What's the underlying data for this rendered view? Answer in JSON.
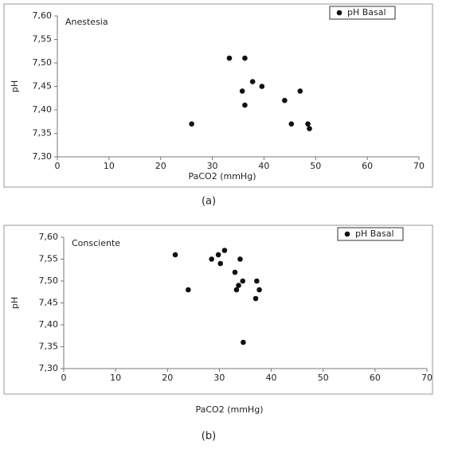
{
  "chart_data": [
    {
      "type": "scatter",
      "annotation": "Anestesia",
      "caption": "(a)",
      "x_label": "PaCO2 (mmHg)",
      "y_label": "pH",
      "series": [
        {
          "name": "pH Basal",
          "color": "#111111",
          "x": [
            26,
            33.3,
            36.3,
            35.8,
            37.8,
            39.6,
            36.3,
            44,
            47,
            45.3,
            48.5,
            48.8
          ],
          "values": [
            7.37,
            7.51,
            7.51,
            7.44,
            7.46,
            7.45,
            7.41,
            7.42,
            7.44,
            7.37,
            7.37,
            7.36
          ]
        }
      ],
      "xlim": [
        0,
        70
      ],
      "xticks": [
        0,
        10,
        20,
        30,
        40,
        50,
        60,
        70
      ],
      "ylim": [
        7.3,
        7.6
      ],
      "yticks": [
        {
          "value": 7.3,
          "label": "7,30"
        },
        {
          "value": 7.35,
          "label": "7,35"
        },
        {
          "value": 7.4,
          "label": "7,40"
        },
        {
          "value": 7.45,
          "label": "7,45"
        },
        {
          "value": 7.5,
          "label": "7,50"
        },
        {
          "value": 7.55,
          "label": "7,55"
        },
        {
          "value": 7.6,
          "label": "7,60"
        }
      ],
      "legend": "upper right"
    },
    {
      "type": "scatter",
      "annotation": "Consciente",
      "caption": "(b)",
      "x_label": "PaCO2 (mmHg)",
      "y_label": "pH",
      "series": [
        {
          "name": "pH Basal",
          "color": "#111111",
          "x": [
            21.5,
            24,
            28.5,
            29.8,
            30.2,
            31,
            33,
            33.3,
            33.7,
            34,
            34.5,
            37,
            37.2,
            37.7,
            34.6
          ],
          "values": [
            7.56,
            7.48,
            7.55,
            7.56,
            7.54,
            7.57,
            7.52,
            7.48,
            7.49,
            7.55,
            7.5,
            7.46,
            7.5,
            7.48,
            7.36
          ]
        }
      ],
      "xlim": [
        0,
        70
      ],
      "xticks": [
        0,
        10,
        20,
        30,
        40,
        50,
        60,
        70
      ],
      "ylim": [
        7.3,
        7.6
      ],
      "yticks": [
        {
          "value": 7.3,
          "label": "7,30"
        },
        {
          "value": 7.35,
          "label": "7,35"
        },
        {
          "value": 7.4,
          "label": "7,40"
        },
        {
          "value": 7.45,
          "label": "7,45"
        },
        {
          "value": 7.5,
          "label": "7,50"
        },
        {
          "value": 7.55,
          "label": "7,55"
        },
        {
          "value": 7.6,
          "label": "7,60"
        }
      ],
      "legend": "upper right"
    }
  ]
}
